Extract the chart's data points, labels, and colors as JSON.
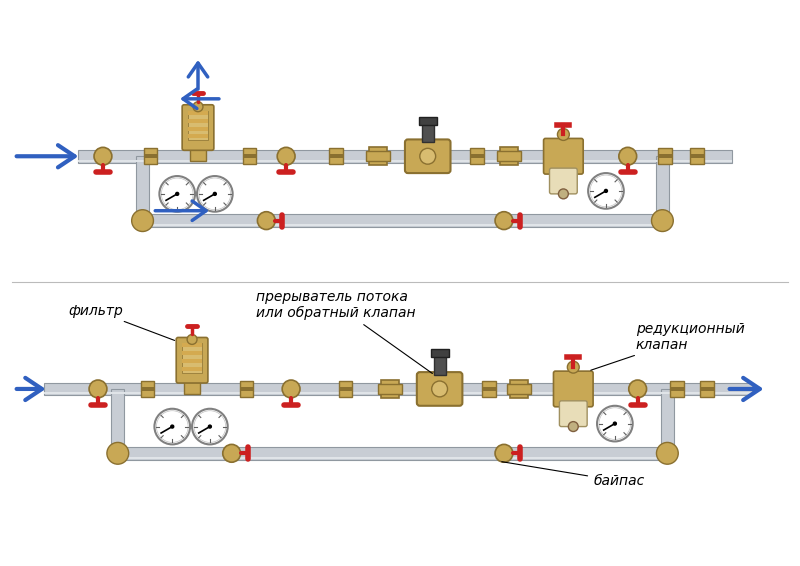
{
  "bg_color": "#ffffff",
  "pipe_gray": "#c8cdd4",
  "pipe_edge": "#9098a0",
  "brass": "#c8a855",
  "brass_dark": "#8a7030",
  "brass_light": "#d8bc70",
  "red": "#cc2020",
  "blue": "#3060c0",
  "white": "#ffffff",
  "black": "#000000",
  "gray": "#808080",
  "dark_gray": "#505050",
  "label_baypass": "байпас",
  "label_filter": "фильтр",
  "label_breaker": "прерыватель потока\nили обратный клапан",
  "label_reductor": "редукционный\nклапан"
}
